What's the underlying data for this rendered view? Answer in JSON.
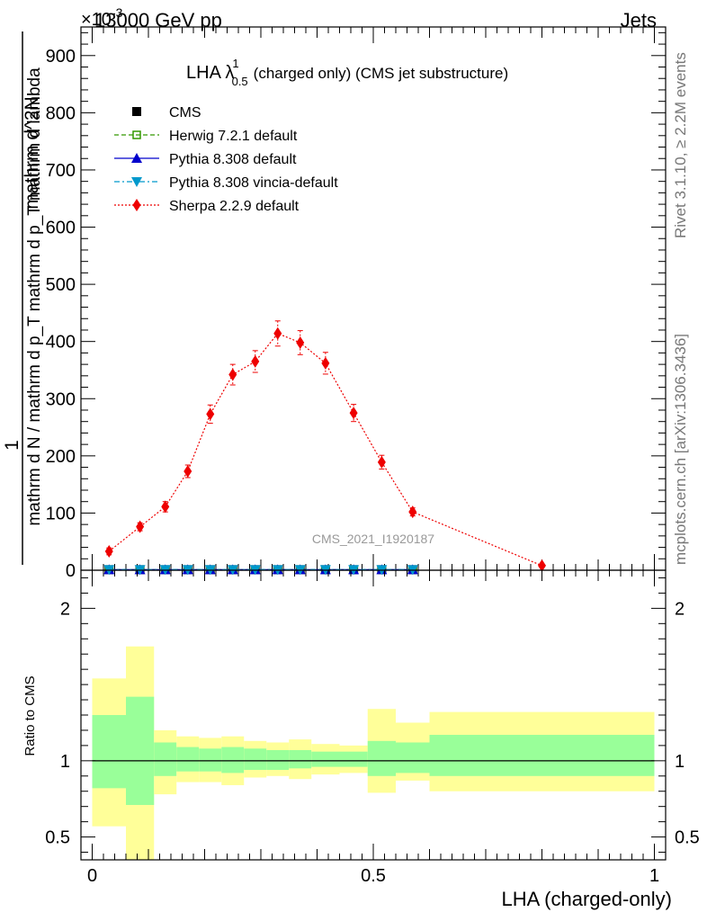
{
  "header": {
    "left": "13000 GeV pp",
    "right": "Jets",
    "multiplier": "×10",
    "multiplier_exp": "-3"
  },
  "side_text": {
    "rivet": "Rivet 3.1.10, ≥ 2.2M events",
    "mcplots": "mcplots.cern.ch [arXiv:1306.3436]"
  },
  "watermark": "CMS_2021_I1920187",
  "chart_data": [
    {
      "type": "line",
      "title": "LHA λ",
      "title_sup": "1",
      "title_sub": "0.5",
      "title_rest": "(charged only) (CMS jet substructure)",
      "ylabel_numerator": "1",
      "ylabel_denominator": "mathrm d N / mathrm d p_T mathrm d p_T mathrm d lambda",
      "ylabel_mid": "mathrm d^2N",
      "ylim": [
        0,
        950
      ],
      "xlim": [
        -0.02,
        1.02
      ],
      "y_ticks": [
        0,
        100,
        200,
        300,
        400,
        500,
        600,
        700,
        800,
        900
      ],
      "legend_position": "top-left",
      "x": [
        0.03,
        0.085,
        0.13,
        0.17,
        0.21,
        0.25,
        0.29,
        0.33,
        0.37,
        0.415,
        0.465,
        0.515,
        0.57,
        0.8
      ],
      "series": [
        {
          "name": "CMS",
          "color": "#000000",
          "marker": "square",
          "line": "none",
          "values": [
            1,
            1,
            1,
            1,
            1,
            1,
            1,
            1,
            1,
            1,
            1,
            1,
            1,
            null
          ]
        },
        {
          "name": "Herwig 7.2.1 default",
          "color": "#339900",
          "marker": "open-square",
          "line": "dashed",
          "values": [
            1,
            1,
            1,
            1,
            1,
            1,
            1,
            1,
            1,
            1,
            1,
            1,
            1,
            null
          ]
        },
        {
          "name": "Pythia 8.308 default",
          "color": "#0000cc",
          "marker": "triangle-up",
          "line": "solid",
          "values": [
            1,
            1,
            1,
            1,
            1,
            1,
            1,
            1,
            1,
            1,
            1,
            1,
            1,
            null
          ]
        },
        {
          "name": "Pythia 8.308 vincia-default",
          "color": "#0099cc",
          "marker": "triangle-down",
          "line": "dashdot",
          "values": [
            1,
            1,
            1,
            1,
            1,
            1,
            1,
            1,
            1,
            1,
            1,
            1,
            1,
            null
          ]
        },
        {
          "name": "Sherpa 2.2.9 default",
          "color": "#ee0000",
          "marker": "diamond",
          "line": "dotted",
          "values": [
            33,
            76,
            111,
            173,
            273,
            342,
            365,
            414,
            398,
            362,
            275,
            189,
            102,
            8
          ],
          "errors": [
            6,
            7,
            9,
            11,
            16,
            18,
            19,
            22,
            21,
            19,
            15,
            12,
            7,
            3
          ]
        }
      ]
    },
    {
      "type": "area",
      "ylabel": "Ratio to CMS",
      "xlabel": "LHA (charged-only)",
      "ylim": [
        0.35,
        2.25
      ],
      "xlim": [
        -0.02,
        1.02
      ],
      "y_ticks": [
        0.5,
        1,
        2
      ],
      "x_ticks": [
        0,
        0.5,
        1
      ],
      "x_tick_labels": [
        "0",
        "0.5",
        "1"
      ],
      "reference_line": 1,
      "bins": [
        {
          "x0": 0.0,
          "x1": 0.06,
          "inner": [
            0.82,
            1.3
          ],
          "outer": [
            0.57,
            1.54
          ]
        },
        {
          "x0": 0.06,
          "x1": 0.11,
          "inner": [
            0.71,
            1.42
          ],
          "outer": [
            0.0,
            1.75
          ]
        },
        {
          "x0": 0.11,
          "x1": 0.15,
          "inner": [
            0.9,
            1.12
          ],
          "outer": [
            0.78,
            1.2
          ]
        },
        {
          "x0": 0.15,
          "x1": 0.19,
          "inner": [
            0.93,
            1.09
          ],
          "outer": [
            0.86,
            1.16
          ]
        },
        {
          "x0": 0.19,
          "x1": 0.23,
          "inner": [
            0.93,
            1.08
          ],
          "outer": [
            0.86,
            1.15
          ]
        },
        {
          "x0": 0.23,
          "x1": 0.27,
          "inner": [
            0.92,
            1.09
          ],
          "outer": [
            0.84,
            1.16
          ]
        },
        {
          "x0": 0.27,
          "x1": 0.31,
          "inner": [
            0.94,
            1.08
          ],
          "outer": [
            0.89,
            1.13
          ]
        },
        {
          "x0": 0.31,
          "x1": 0.35,
          "inner": [
            0.94,
            1.07
          ],
          "outer": [
            0.9,
            1.12
          ]
        },
        {
          "x0": 0.35,
          "x1": 0.39,
          "inner": [
            0.95,
            1.07
          ],
          "outer": [
            0.88,
            1.14
          ]
        },
        {
          "x0": 0.39,
          "x1": 0.44,
          "inner": [
            0.96,
            1.06
          ],
          "outer": [
            0.91,
            1.11
          ]
        },
        {
          "x0": 0.44,
          "x1": 0.49,
          "inner": [
            0.96,
            1.06
          ],
          "outer": [
            0.92,
            1.1
          ]
        },
        {
          "x0": 0.49,
          "x1": 0.54,
          "inner": [
            0.9,
            1.13
          ],
          "outer": [
            0.79,
            1.34
          ]
        },
        {
          "x0": 0.54,
          "x1": 0.6,
          "inner": [
            0.92,
            1.12
          ],
          "outer": [
            0.87,
            1.25
          ]
        },
        {
          "x0": 0.6,
          "x1": 1.0,
          "inner": [
            0.9,
            1.17
          ],
          "outer": [
            0.8,
            1.32
          ]
        }
      ],
      "colors": {
        "inner": "#99ff99",
        "outer": "#ffff99"
      }
    }
  ]
}
